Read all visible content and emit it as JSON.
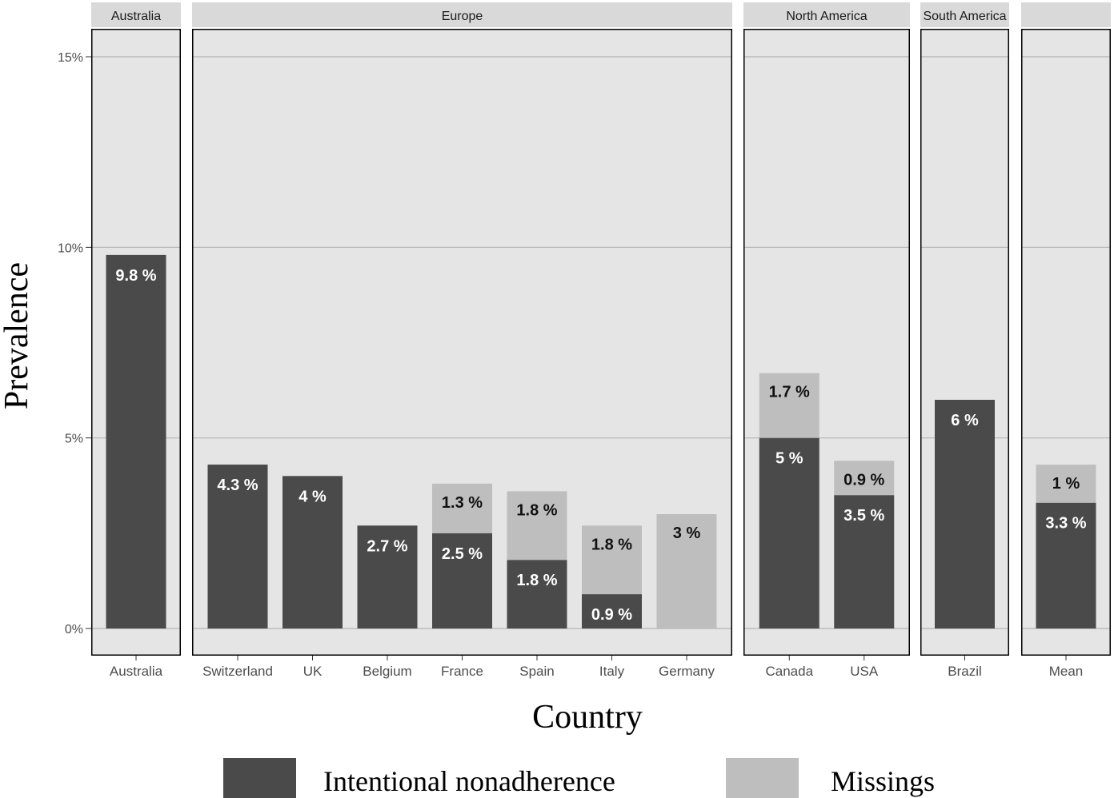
{
  "chart_data": {
    "type": "bar",
    "stacked": true,
    "xlabel": "Country",
    "ylabel": "Prevalence",
    "ylim": [
      -1.4,
      15.9
    ],
    "yticks": [
      0,
      5,
      10,
      15
    ],
    "ytick_labels": [
      "0%",
      "5%",
      "10%",
      "15%"
    ],
    "grid": true,
    "legend_position": "bottom",
    "colors": {
      "intentional": "#4a4a4a",
      "missings": "#bebebe",
      "panel": "#e5e5e5",
      "strip": "#d9d9d9",
      "grid": "#b5b5b5"
    },
    "series": [
      {
        "name": "Intentional nonadherence",
        "key": "intentional"
      },
      {
        "name": "Missings",
        "key": "missings"
      }
    ],
    "facets": [
      {
        "label": "Australia",
        "categories": [
          {
            "name": "Australia",
            "intentional": 9.8,
            "intentional_label": "9.8 %",
            "missings": 0,
            "missings_label": ""
          }
        ]
      },
      {
        "label": "Europe",
        "categories": [
          {
            "name": "Switzerland",
            "intentional": 4.3,
            "intentional_label": "4.3 %",
            "missings": 0,
            "missings_label": ""
          },
          {
            "name": "UK",
            "intentional": 4.0,
            "intentional_label": "4 %",
            "missings": 0,
            "missings_label": ""
          },
          {
            "name": "Belgium",
            "intentional": 2.7,
            "intentional_label": "2.7 %",
            "missings": 0,
            "missings_label": ""
          },
          {
            "name": "France",
            "intentional": 2.5,
            "intentional_label": "2.5 %",
            "missings": 1.3,
            "missings_label": "1.3 %"
          },
          {
            "name": "Spain",
            "intentional": 1.8,
            "intentional_label": "1.8 %",
            "missings": 1.8,
            "missings_label": "1.8 %"
          },
          {
            "name": "Italy",
            "intentional": 0.9,
            "intentional_label": "0.9 %",
            "missings": 1.8,
            "missings_label": "1.8 %"
          },
          {
            "name": "Germany",
            "intentional": 0,
            "intentional_label": "",
            "missings": 3.0,
            "missings_label": "3 %"
          }
        ]
      },
      {
        "label": "North America",
        "categories": [
          {
            "name": "Canada",
            "intentional": 5.0,
            "intentional_label": "5 %",
            "missings": 1.7,
            "missings_label": "1.7 %"
          },
          {
            "name": "USA",
            "intentional": 3.5,
            "intentional_label": "3.5 %",
            "missings": 0.9,
            "missings_label": "0.9 %"
          }
        ]
      },
      {
        "label": "South America",
        "categories": [
          {
            "name": "Brazil",
            "intentional": 6.0,
            "intentional_label": "6 %",
            "missings": 0,
            "missings_label": ""
          }
        ]
      },
      {
        "label": "",
        "categories": [
          {
            "name": "Mean",
            "intentional": 3.3,
            "intentional_label": "3.3 %",
            "missings": 1.0,
            "missings_label": "1 %"
          }
        ]
      }
    ]
  }
}
